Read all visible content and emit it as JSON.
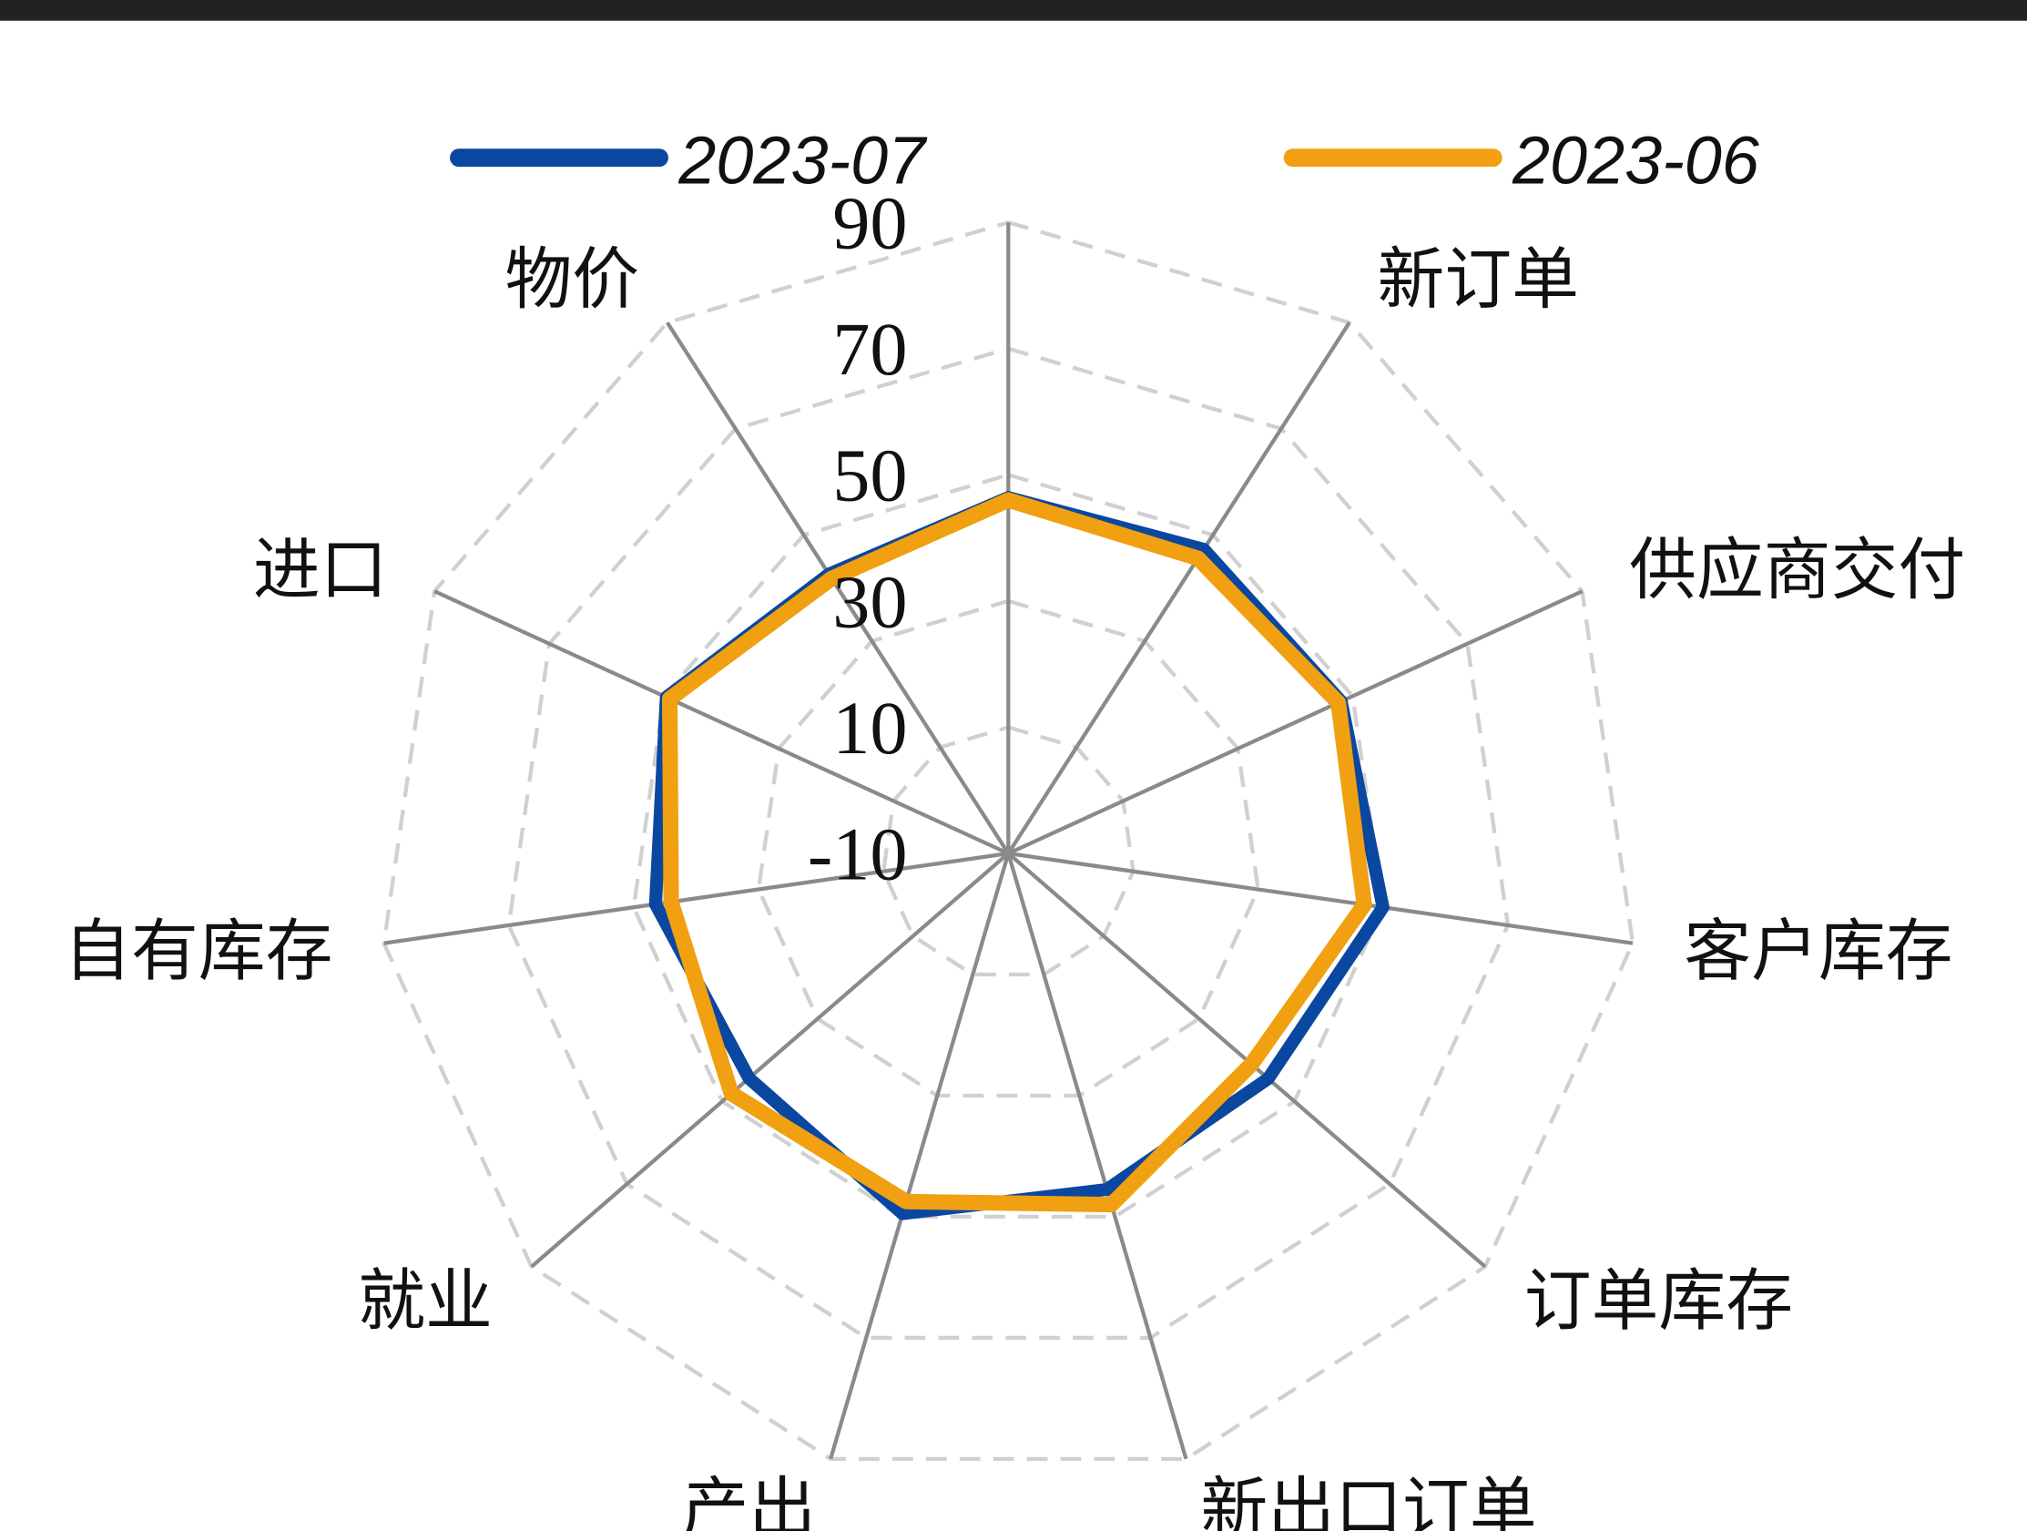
{
  "chart_data": {
    "type": "radar",
    "categories": [
      null,
      "新订单",
      "供应商交付",
      "客户库存",
      "订单库存",
      "新出口订单",
      "产出",
      "就业",
      "自有库存",
      "进口",
      "物价"
    ],
    "series": [
      {
        "name": "2023-07",
        "color": "#0a47a0",
        "values": [
          46.4,
          47.3,
          48,
          50,
          44.5,
          45.5,
          49.5,
          44.4,
          46.5,
          49.6,
          42.6
        ]
      },
      {
        "name": "2023-06",
        "color": "#f0a010",
        "values": [
          46,
          45.6,
          47.5,
          47,
          41,
          48,
          47.5,
          48.1,
          44,
          49,
          41.8
        ]
      }
    ],
    "rlim": [
      -10,
      90
    ],
    "rticks": [
      -10,
      10,
      30,
      50,
      70,
      90
    ],
    "grid": true,
    "legend": "top"
  }
}
